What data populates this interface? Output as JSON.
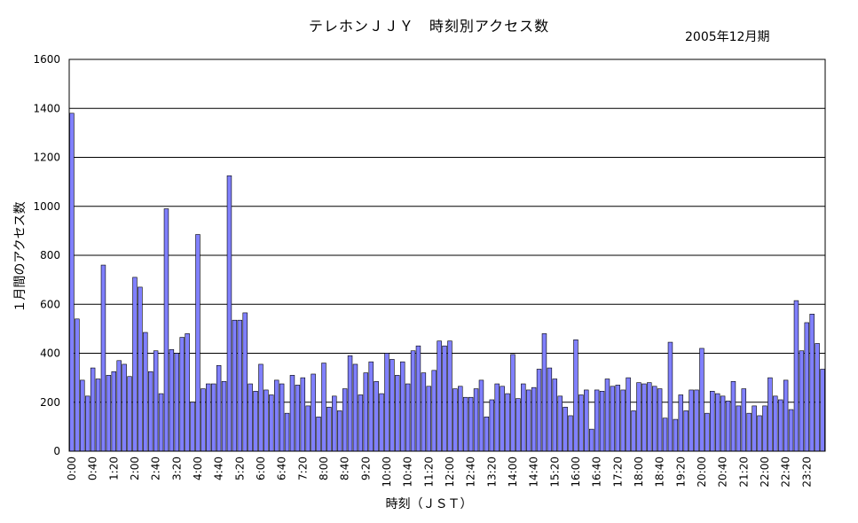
{
  "chart_data": {
    "type": "bar",
    "title": "テレホンＪＪＹ　時刻別アクセス数",
    "subtitle": "2005年12月期",
    "xlabel": "時刻（ＪＳＴ）",
    "ylabel": "１月間のアクセス数",
    "ylim": [
      0,
      1600
    ],
    "yticks": [
      "0",
      "200",
      "400",
      "600",
      "800",
      "1000",
      "1200",
      "1400",
      "1600"
    ],
    "grid": true,
    "legend": "none",
    "bar_color": "#8080ff",
    "xtick_labels": [
      "0:00",
      "0:40",
      "1:20",
      "2:00",
      "2:40",
      "3:20",
      "4:00",
      "4:40",
      "5:20",
      "6:00",
      "6:40",
      "7:20",
      "8:00",
      "8:40",
      "9:20",
      "10:00",
      "10:40",
      "11:20",
      "12:00",
      "12:40",
      "13:20",
      "14:00",
      "14:40",
      "15:20",
      "16:00",
      "16:40",
      "17:20",
      "18:00",
      "18:40",
      "19:20",
      "20:00",
      "20:40",
      "21:20",
      "22:00",
      "22:40",
      "23:20"
    ],
    "values": [
      1380,
      540,
      290,
      225,
      340,
      295,
      760,
      310,
      325,
      370,
      355,
      305,
      710,
      670,
      485,
      325,
      410,
      235,
      990,
      415,
      400,
      465,
      480,
      200,
      885,
      255,
      275,
      275,
      350,
      285,
      1125,
      535,
      535,
      565,
      275,
      245,
      355,
      250,
      230,
      290,
      275,
      155,
      310,
      270,
      300,
      185,
      315,
      140,
      360,
      180,
      225,
      165,
      255,
      390,
      355,
      230,
      320,
      365,
      285,
      235,
      400,
      375,
      310,
      365,
      275,
      410,
      430,
      320,
      265,
      330,
      450,
      430,
      450,
      255,
      265,
      220,
      220,
      255,
      290,
      140,
      210,
      275,
      265,
      235,
      395,
      215,
      275,
      250,
      260,
      335,
      480,
      340,
      295,
      225,
      180,
      145,
      455,
      230,
      250,
      90,
      250,
      245,
      295,
      265,
      270,
      250,
      300,
      165,
      280,
      275,
      280,
      265,
      255,
      135,
      445,
      130,
      230,
      165,
      250,
      250,
      420,
      155,
      245,
      235,
      225,
      205,
      285,
      185,
      255,
      155,
      185,
      145,
      185,
      300,
      225,
      210,
      290,
      170,
      615,
      410,
      525,
      560,
      440,
      335
    ]
  }
}
